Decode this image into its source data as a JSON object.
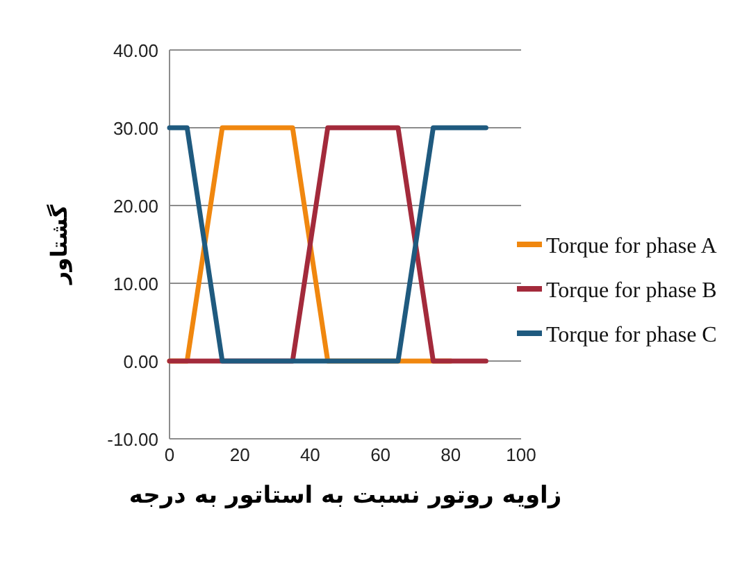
{
  "chart_data": {
    "type": "line",
    "xlabel": "زاویه روتور نسبت به استاتور به درجه",
    "ylabel": "گشتاور",
    "x": [
      0,
      5,
      10,
      15,
      20,
      25,
      30,
      35,
      40,
      45,
      50,
      55,
      60,
      65,
      70,
      75,
      80,
      85,
      90
    ],
    "series": [
      {
        "name": "Torque for phase A",
        "color": "#f0870f",
        "values": [
          0,
          0,
          15,
          30,
          30,
          30,
          30,
          30,
          15,
          0,
          0,
          0,
          0,
          0,
          0,
          0,
          0,
          null,
          null
        ]
      },
      {
        "name": "Torque for phase B",
        "color": "#a32a3b",
        "values": [
          0,
          0,
          0,
          0,
          0,
          0,
          0,
          0,
          15,
          30,
          30,
          30,
          30,
          30,
          15,
          0,
          0,
          0,
          0
        ]
      },
      {
        "name": "Torque for phase C",
        "color": "#1f5a7f",
        "values": [
          30,
          30,
          15,
          0,
          0,
          0,
          0,
          0,
          0,
          0,
          0,
          0,
          0,
          0,
          15,
          30,
          30,
          30,
          30
        ]
      }
    ],
    "xlim": [
      0,
      100
    ],
    "xticks": [
      0,
      20,
      40,
      60,
      80,
      100
    ],
    "ylim": [
      -10,
      40
    ],
    "yticks": [
      {
        "value": -10,
        "label": "-10.00"
      },
      {
        "value": 0,
        "label": "0.00"
      },
      {
        "value": 10,
        "label": "10.00"
      },
      {
        "value": 20,
        "label": "20.00"
      },
      {
        "value": 30,
        "label": "30.00"
      },
      {
        "value": 40,
        "label": "40.00"
      }
    ],
    "grid": "y",
    "legend": "right",
    "marker": "none",
    "line_style": "solid"
  }
}
